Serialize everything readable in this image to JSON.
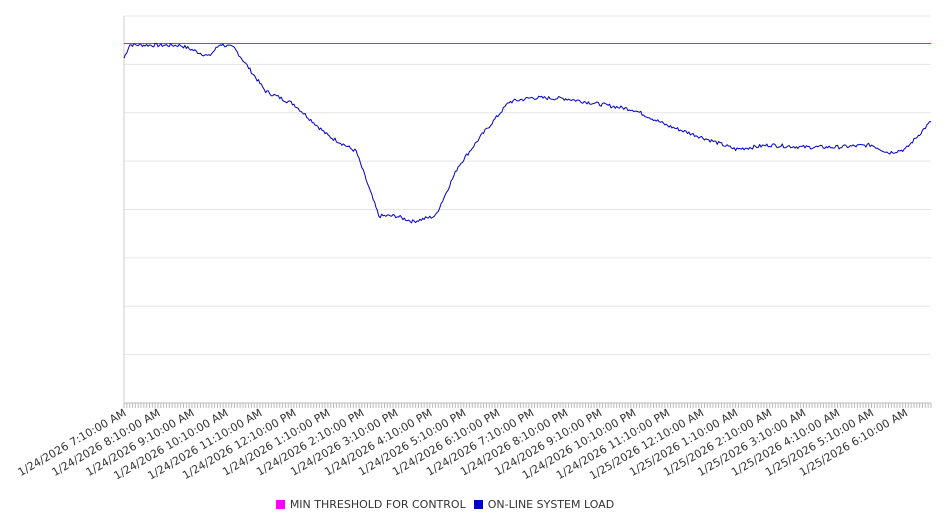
{
  "chart_data": {
    "type": "line",
    "title": "",
    "xlabel": "",
    "ylabel": "",
    "x_start": "1/24/2026 7:10:00 AM",
    "x_end": "1/25/2026 6:55:00 AM",
    "x_step_minutes": 5,
    "tick_labels": [
      "1/24/2026 7:10:00 AM",
      "1/24/2026 8:10:00 AM",
      "1/24/2026 9:10:00 AM",
      "1/24/2026 10:10:00 AM",
      "1/24/2026 11:10:00 AM",
      "1/24/2026 12:10:00 PM",
      "1/24/2026 1:10:00 PM",
      "1/24/2026 2:10:00 PM",
      "1/24/2026 3:10:00 PM",
      "1/24/2026 4:10:00 PM",
      "1/24/2026 5:10:00 PM",
      "1/24/2026 6:10:00 PM",
      "1/24/2026 7:10:00 PM",
      "1/24/2026 8:10:00 PM",
      "1/24/2026 9:10:00 PM",
      "1/24/2026 10:10:00 PM",
      "1/24/2026 11:10:00 PM",
      "1/25/2026 12:10:00 AM",
      "1/25/2026 1:10:00 AM",
      "1/25/2026 2:10:00 AM",
      "1/25/2026 3:10:00 AM",
      "1/25/2026 4:10:00 AM",
      "1/25/2026 5:10:00 AM",
      "1/25/2026 6:10:00 AM"
    ],
    "y_ticks_labeled": false,
    "gridlines": 8,
    "grid": true,
    "legend_position": "bottom",
    "series": [
      {
        "name": "MIN THRESHOLD FOR CONTROL",
        "color": "#ff00ff",
        "values": [
          8.36,
          8.36
        ]
      },
      {
        "name": "ON-LINE SYSTEM LOAD",
        "color": "#0000cc",
        "anchors": [
          {
            "x": "1/24/2026 7:10:00 AM",
            "y": 8.02
          },
          {
            "x": "1/24/2026 7:20:00 AM",
            "y": 8.33
          },
          {
            "x": "1/24/2026 8:10:00 AM",
            "y": 8.32
          },
          {
            "x": "1/24/2026 8:50:00 AM",
            "y": 8.32
          },
          {
            "x": "1/24/2026 9:40:00 AM",
            "y": 8.06
          },
          {
            "x": "1/24/2026 10:00:00 AM",
            "y": 8.35
          },
          {
            "x": "1/24/2026 10:25:00 AM",
            "y": 8.25
          },
          {
            "x": "1/24/2026 11:20:00 AM",
            "y": 7.25
          },
          {
            "x": "1/24/2026 12:10:00 PM",
            "y": 6.95
          },
          {
            "x": "1/24/2026 1:10:00 PM",
            "y": 6.22
          },
          {
            "x": "1/24/2026 2:00:00 PM",
            "y": 5.85
          },
          {
            "x": "1/24/2026 2:40:00 PM",
            "y": 4.35
          },
          {
            "x": "1/24/2026 3:10:00 PM",
            "y": 4.35
          },
          {
            "x": "1/24/2026 3:40:00 PM",
            "y": 4.22
          },
          {
            "x": "1/24/2026 4:20:00 PM",
            "y": 4.35
          },
          {
            "x": "1/24/2026 5:00:00 PM",
            "y": 5.5
          },
          {
            "x": "1/24/2026 5:40:00 PM",
            "y": 6.2
          },
          {
            "x": "1/24/2026 6:30:00 PM",
            "y": 7.0
          },
          {
            "x": "1/24/2026 7:10:00 PM",
            "y": 7.1
          },
          {
            "x": "1/24/2026 8:10:00 PM",
            "y": 7.08
          },
          {
            "x": "1/24/2026 9:10:00 PM",
            "y": 6.95
          },
          {
            "x": "1/24/2026 10:10:00 PM",
            "y": 6.82
          },
          {
            "x": "1/24/2026 11:10:00 PM",
            "y": 6.45
          },
          {
            "x": "1/25/2026 12:10:00 AM",
            "y": 6.18
          },
          {
            "x": "1/25/2026 1:10:00 AM",
            "y": 5.9
          },
          {
            "x": "1/25/2026 2:10:00 AM",
            "y": 6.0
          },
          {
            "x": "1/25/2026 3:10:00 AM",
            "y": 5.95
          },
          {
            "x": "1/25/2026 4:10:00 AM",
            "y": 5.95
          },
          {
            "x": "1/25/2026 5:10:00 AM",
            "y": 6.0
          },
          {
            "x": "1/25/2026 5:40:00 AM",
            "y": 5.82
          },
          {
            "x": "1/25/2026 6:10:00 AM",
            "y": 5.9
          },
          {
            "x": "1/25/2026 6:55:00 AM",
            "y": 6.55
          }
        ]
      }
    ]
  }
}
